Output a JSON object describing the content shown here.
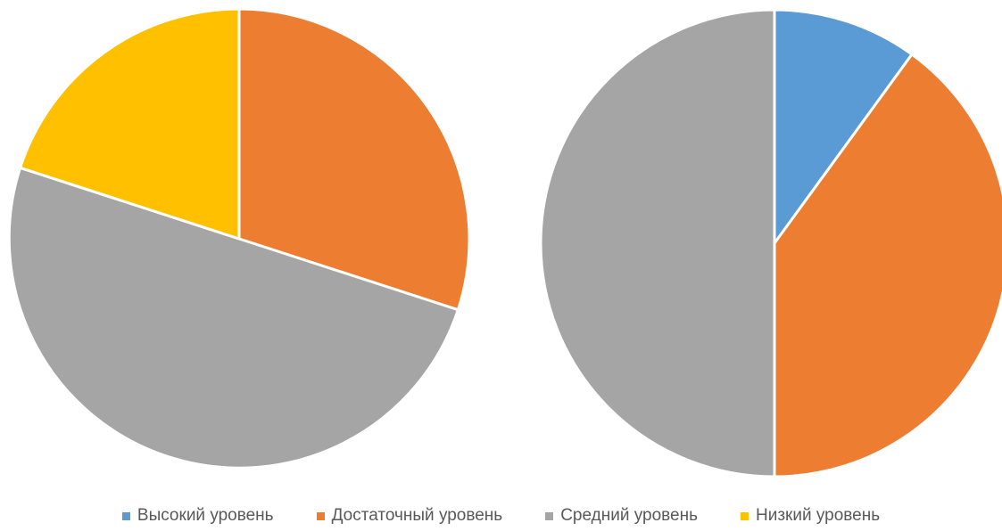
{
  "chart_data": [
    {
      "type": "pie",
      "categories": [
        "Высокий уровень",
        "Достаточный уровень",
        "Средний уровень",
        "Низкий уровень"
      ],
      "values": [
        0,
        30,
        50,
        20
      ],
      "colors": [
        "#5B9BD5",
        "#ED7D31",
        "#A5A5A5",
        "#FFC000"
      ],
      "start_angle_deg": 0,
      "direction": "clockwise",
      "legend_position": "bottom"
    },
    {
      "type": "pie",
      "categories": [
        "Высокий уровень",
        "Достаточный уровень",
        "Средний уровень",
        "Низкий уровень"
      ],
      "values": [
        10,
        40,
        50,
        0
      ],
      "colors": [
        "#5B9BD5",
        "#ED7D31",
        "#A5A5A5",
        "#FFC000"
      ],
      "start_angle_deg": 0,
      "direction": "clockwise",
      "legend_position": "bottom"
    }
  ],
  "legend": {
    "items": [
      {
        "label": "Высокий уровень",
        "color": "#5B9BD5"
      },
      {
        "label": "Достаточный уровень",
        "color": "#ED7D31"
      },
      {
        "label": "Средний уровень",
        "color": "#A5A5A5"
      },
      {
        "label": "Низкий уровень",
        "color": "#FFC000"
      }
    ]
  }
}
